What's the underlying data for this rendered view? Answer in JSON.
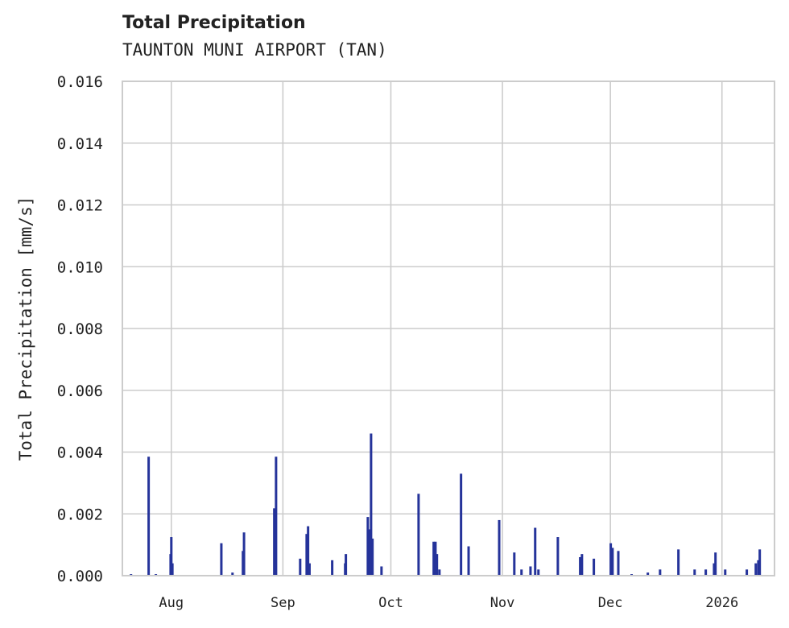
{
  "header": {
    "title": "Total Precipitation",
    "subtitle": "TAUNTON MUNI AIRPORT (TAN)"
  },
  "colors": {
    "series": "#25339a",
    "grid": "#cccccc",
    "text": "#222222"
  },
  "chart_data": {
    "type": "bar",
    "title": "Total Precipitation",
    "subtitle": "TAUNTON MUNI AIRPORT (TAN)",
    "xlabel": "",
    "ylabel": "Total Precipitation [mm/s]",
    "ylim": [
      0,
      0.016
    ],
    "yticks": [
      "0.000",
      "0.002",
      "0.004",
      "0.006",
      "0.008",
      "0.010",
      "0.012",
      "0.014",
      "0.016"
    ],
    "xticks": [
      {
        "label": "Aug",
        "day": 0
      },
      {
        "label": "Sep",
        "day": 31
      },
      {
        "label": "Oct",
        "day": 61
      },
      {
        "label": "Nov",
        "day": 92
      },
      {
        "label": "Dec",
        "day": 122
      },
      {
        "label": "2026",
        "day": 153
      }
    ],
    "x_unit": "days since Aug 1 2025",
    "xlim": [
      -13.6,
      167.6
    ],
    "grid": true,
    "legend": null,
    "series": [
      {
        "name": "Total Precipitation",
        "points": [
          [
            -11.2,
            5e-05
          ],
          [
            -6.3,
            0.00385
          ],
          [
            -4.3,
            5e-05
          ],
          [
            -0.2,
            0.0007
          ],
          [
            0.0,
            0.00125
          ],
          [
            0.3,
            0.0004
          ],
          [
            13.9,
            0.00105
          ],
          [
            17.0,
            0.0001
          ],
          [
            19.9,
            0.0008
          ],
          [
            20.2,
            0.0014
          ],
          [
            28.6,
            0.00218
          ],
          [
            29.1,
            0.00385
          ],
          [
            35.8,
            0.00055
          ],
          [
            37.6,
            0.00135
          ],
          [
            38.0,
            0.0016
          ],
          [
            38.4,
            0.0004
          ],
          [
            44.7,
            0.0005
          ],
          [
            48.3,
            0.0004
          ],
          [
            48.5,
            0.0007
          ],
          [
            54.6,
            0.0019
          ],
          [
            55.0,
            0.0015
          ],
          [
            55.5,
            0.0046
          ],
          [
            55.9,
            0.0012
          ],
          [
            58.4,
            0.0003
          ],
          [
            68.7,
            0.00265
          ],
          [
            72.9,
            0.0011
          ],
          [
            73.4,
            0.0011
          ],
          [
            73.8,
            0.0007
          ],
          [
            74.5,
            0.0002
          ],
          [
            80.5,
            0.0033
          ],
          [
            82.6,
            0.00095
          ],
          [
            91.1,
            0.0018
          ],
          [
            95.3,
            0.00075
          ],
          [
            97.3,
            0.0002
          ],
          [
            99.8,
            0.0003
          ],
          [
            101.1,
            0.00155
          ],
          [
            102.0,
            0.0002
          ],
          [
            107.4,
            0.00125
          ],
          [
            113.6,
            0.0006
          ],
          [
            114.1,
            0.0007
          ],
          [
            117.4,
            0.00055
          ],
          [
            122.1,
            0.00105
          ],
          [
            122.6,
            0.0009
          ],
          [
            124.2,
            0.0008
          ],
          [
            127.9,
            5e-05
          ],
          [
            132.4,
            0.0001
          ],
          [
            135.8,
            0.0002
          ],
          [
            140.9,
            0.00085
          ],
          [
            145.4,
            0.0002
          ],
          [
            148.5,
            0.0002
          ],
          [
            150.8,
            0.0004
          ],
          [
            151.2,
            0.00075
          ],
          [
            153.9,
            0.0002
          ],
          [
            159.9,
            0.0002
          ],
          [
            162.4,
            0.0004
          ],
          [
            163.1,
            0.0005
          ],
          [
            163.5,
            0.00085
          ]
        ]
      }
    ]
  }
}
